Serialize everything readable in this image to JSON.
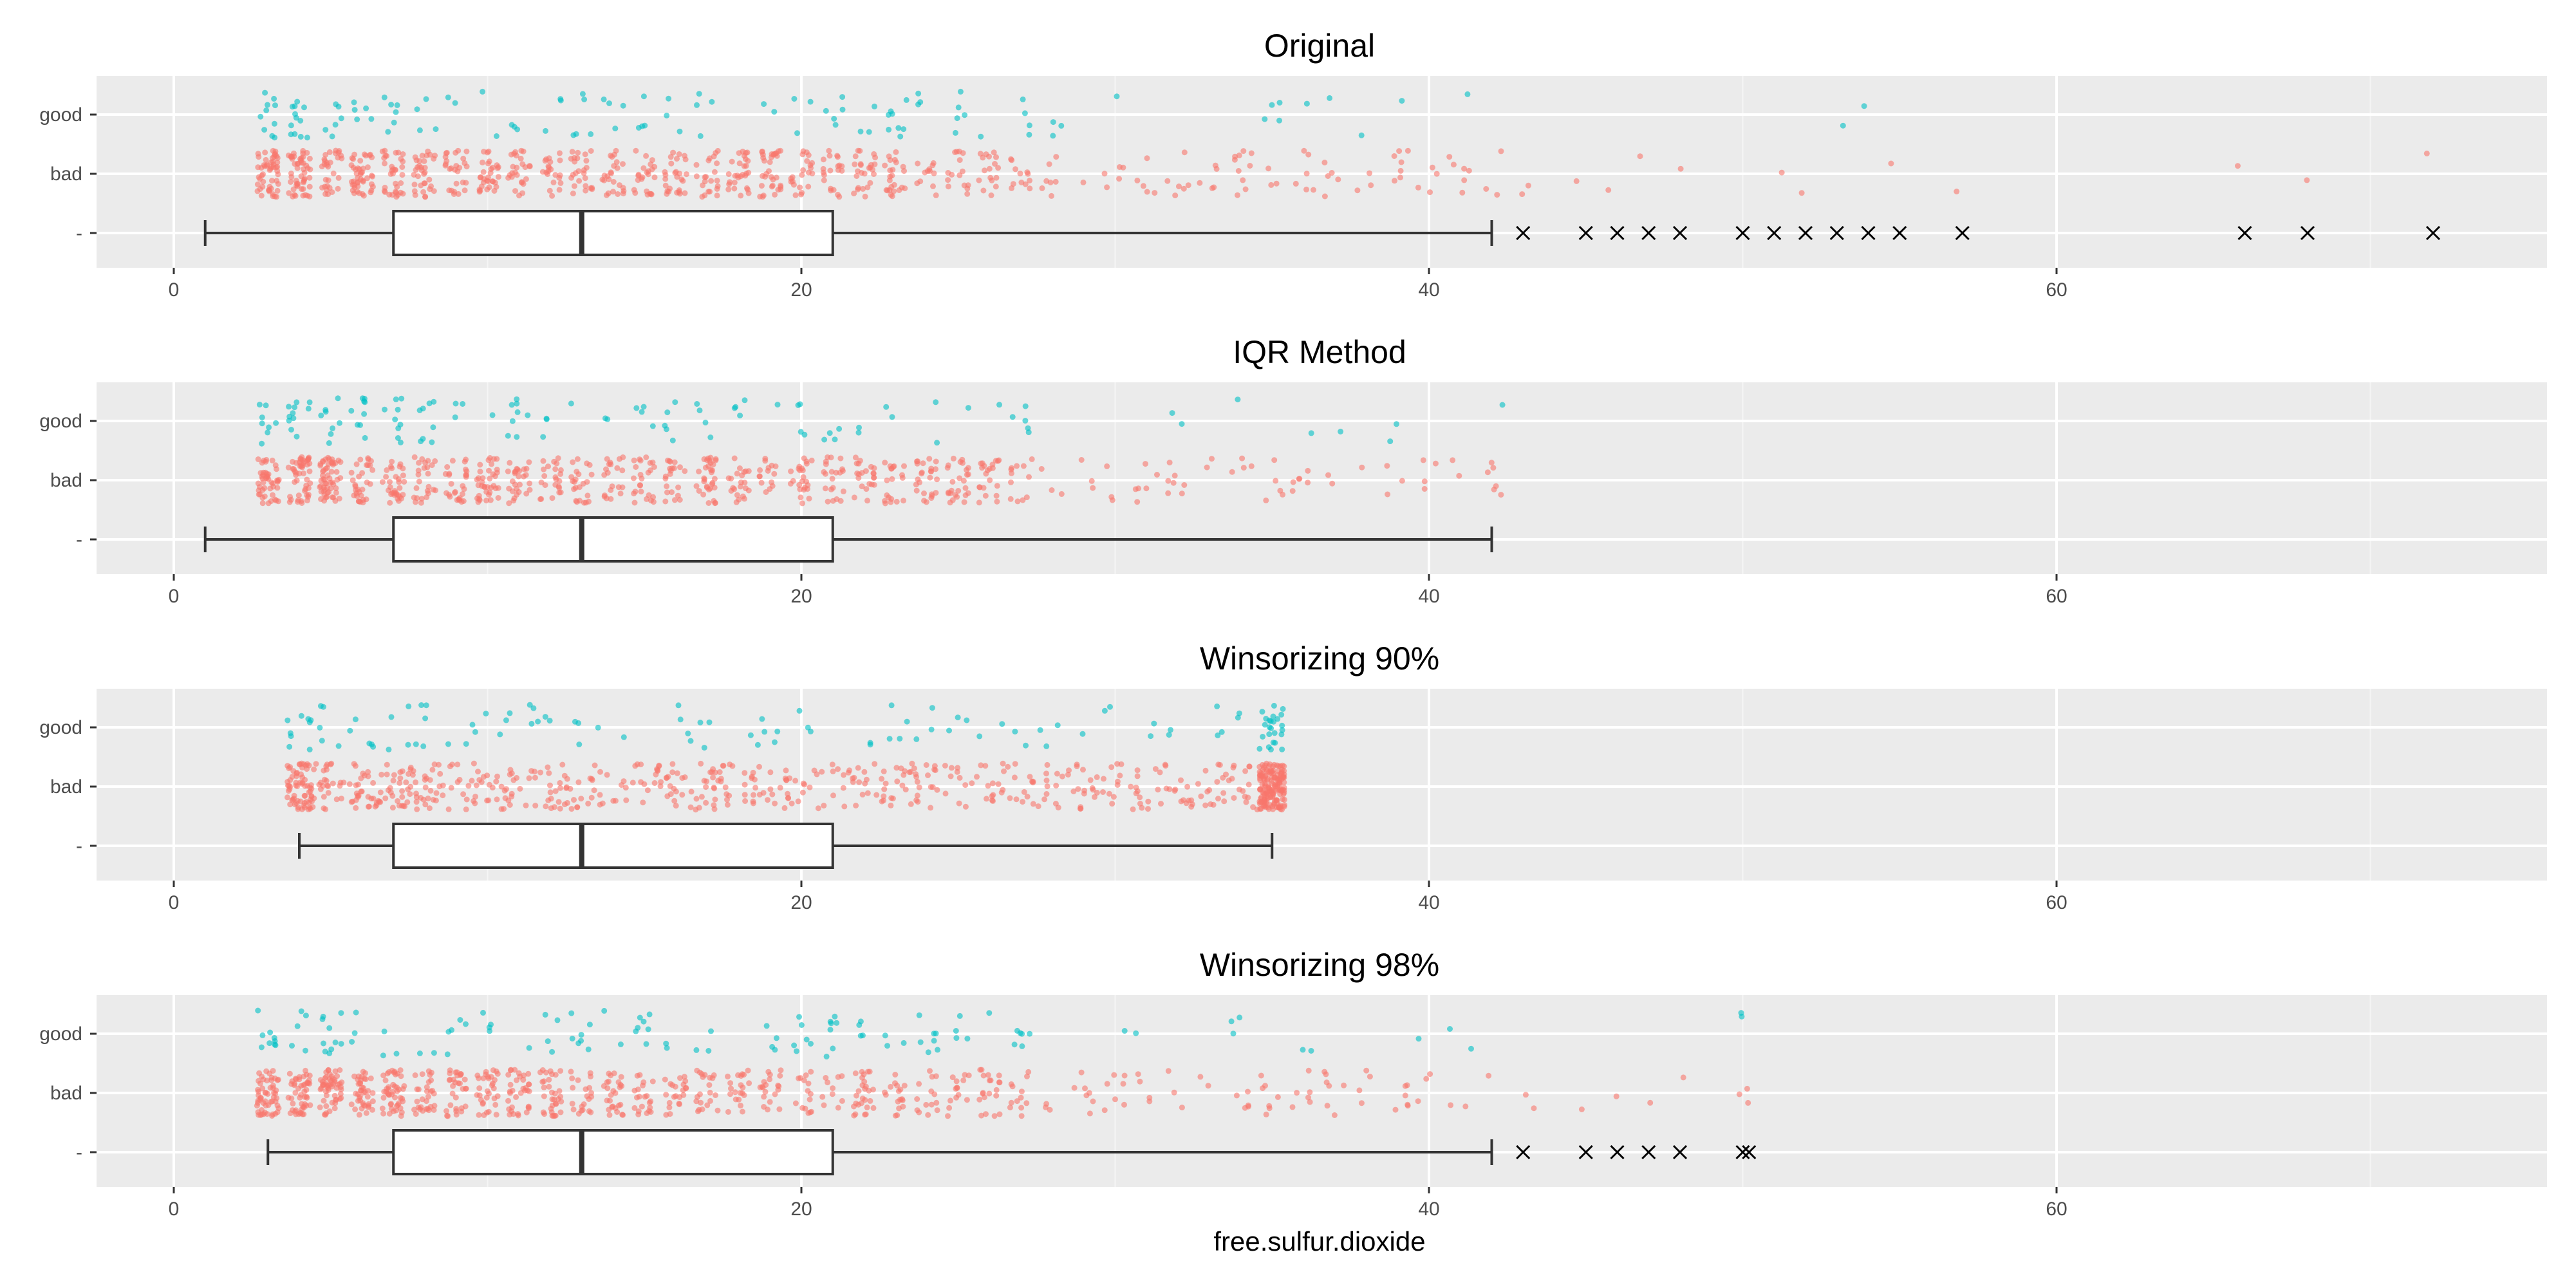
{
  "chart_data": [
    {
      "type": "box",
      "title": "Original",
      "xlabel": "",
      "x_ticks": [
        0,
        20,
        40,
        60
      ],
      "xlim": [
        -2.5,
        75.5
      ],
      "y_categories": [
        "good",
        "bad",
        "-"
      ],
      "box": {
        "whisker_low": 1,
        "q1": 7,
        "median": 13,
        "q3": 21,
        "whisker_high": 42
      },
      "outliers": [
        43,
        45,
        46,
        47,
        48,
        50,
        51,
        52,
        53,
        54,
        55,
        57,
        66,
        68,
        72
      ],
      "jitter": {
        "bad": {
          "min": 2,
          "max": 72,
          "count": 1382,
          "color": "#f8766d",
          "discrete": true,
          "extra_values": [
            43,
            45,
            46,
            47,
            48,
            51,
            52,
            55,
            57,
            66,
            68,
            72
          ]
        },
        "good": {
          "min": 3,
          "max": 54,
          "count": 217,
          "color": "#00bfc4",
          "discrete": true,
          "extra_values": [
            41,
            53,
            54
          ]
        }
      }
    },
    {
      "type": "box",
      "title": "IQR Method",
      "xlabel": "",
      "x_ticks": [
        0,
        20,
        40,
        60
      ],
      "xlim": [
        -2.5,
        75.5
      ],
      "y_categories": [
        "good",
        "bad",
        "-"
      ],
      "box": {
        "whisker_low": 1,
        "q1": 7,
        "median": 13,
        "q3": 21,
        "whisker_high": 42
      },
      "outliers": [],
      "jitter": {
        "bad": {
          "min": 2,
          "max": 42,
          "count": 1350,
          "color": "#f8766d",
          "discrete": true,
          "extra_values": []
        },
        "good": {
          "min": 3,
          "max": 42,
          "count": 214,
          "color": "#00bfc4",
          "discrete": true,
          "extra_values": []
        }
      }
    },
    {
      "type": "box",
      "title": "Winsorizing 90%",
      "xlabel": "",
      "x_ticks": [
        0,
        20,
        40,
        60
      ],
      "xlim": [
        -2.5,
        75.5
      ],
      "y_categories": [
        "good",
        "bad",
        "-"
      ],
      "box": {
        "whisker_low": 4,
        "q1": 7,
        "median": 13,
        "q3": 21,
        "whisker_high": 35
      },
      "outliers": [],
      "jitter": {
        "bad": {
          "min": 4,
          "max": 35,
          "count": 1382,
          "color": "#f8766d",
          "discrete": false,
          "clamp_heavy": true,
          "extra_values": []
        },
        "good": {
          "min": 4,
          "max": 35,
          "count": 217,
          "color": "#00bfc4",
          "discrete": false,
          "clamp_heavy": true,
          "extra_values": []
        }
      }
    },
    {
      "type": "box",
      "title": "Winsorizing 98%",
      "xlabel": "free.sulfur.dioxide",
      "x_ticks": [
        0,
        20,
        40,
        60
      ],
      "xlim": [
        -2.5,
        75.5
      ],
      "y_categories": [
        "good",
        "bad",
        "-"
      ],
      "box": {
        "whisker_low": 3,
        "q1": 7,
        "median": 13,
        "q3": 21,
        "whisker_high": 42
      },
      "outliers": [
        43,
        45,
        46,
        47,
        48,
        50,
        50.2
      ],
      "jitter": {
        "bad": {
          "min": 3,
          "max": 50,
          "count": 1382,
          "color": "#f8766d",
          "discrete": true,
          "extra_values": [
            43,
            45,
            46,
            47,
            48,
            50,
            50,
            50
          ]
        },
        "good": {
          "min": 3,
          "max": 50,
          "count": 217,
          "color": "#00bfc4",
          "discrete": true,
          "extra_values": [
            50,
            50
          ]
        }
      }
    }
  ]
}
